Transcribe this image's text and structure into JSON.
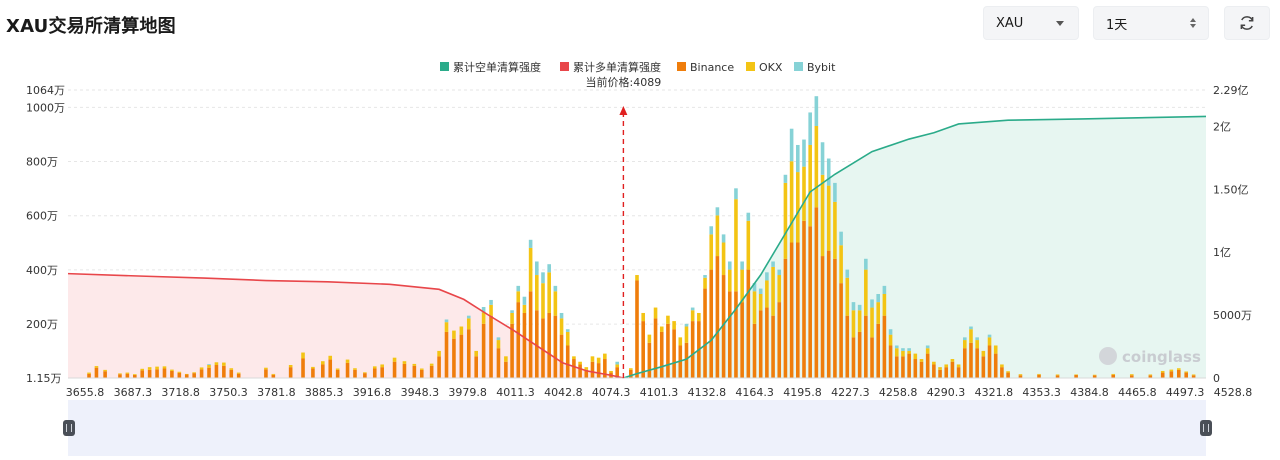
{
  "page": {
    "title": "XAU交易所清算地图",
    "symbol_select": "XAU",
    "period_select": "1天",
    "refresh_icon": "refresh-icon"
  },
  "chart_data": {
    "type": "bar",
    "annotation": "当前价格:4089",
    "current_price": 4089,
    "watermark": "coinglass",
    "legend": [
      "累计空单清算强度",
      "累计多单清算强度",
      "Binance",
      "OKX",
      "Bybit"
    ],
    "colors": {
      "short_line": "#2bab8a",
      "short_fill": "#e7f6f1",
      "long_line": "#e8464a",
      "long_fill": "#fde9ea",
      "binance": "#ef7d0b",
      "okx": "#f3c414",
      "bybit": "#86d2d6",
      "marker": "#e02020"
    },
    "xlim": [
      3640,
      4560
    ],
    "x_ticks": [
      "3655.8",
      "3687.3",
      "3718.8",
      "3750.3",
      "3781.8",
      "3885.3",
      "3916.8",
      "3948.3",
      "3979.8",
      "4011.3",
      "4042.8",
      "4074.3",
      "4101.3",
      "4132.8",
      "4164.3",
      "4195.8",
      "4227.3",
      "4258.8",
      "4290.3",
      "4321.8",
      "4353.3",
      "4384.8",
      "4465.8",
      "4497.3",
      "4528.8"
    ],
    "y_left_ticks": [
      "1.15万",
      "200万",
      "400万",
      "600万",
      "800万",
      "1000万",
      "1064万"
    ],
    "y_left_values": [
      11500,
      2000000,
      4000000,
      6000000,
      8000000,
      10000000,
      10640000
    ],
    "y_left_range": [
      11500,
      10640000
    ],
    "y_right_ticks": [
      "0",
      "5000万",
      "1亿",
      "1.50亿",
      "2亿",
      "2.29亿"
    ],
    "y_right_values": [
      0,
      50000000,
      100000000,
      150000000,
      200000000,
      229000000
    ],
    "y_right_range": [
      0,
      229000000
    ],
    "bars": [
      {
        "x": 3657,
        "b": 150000,
        "o": 50000,
        "y": 0
      },
      {
        "x": 3663,
        "b": 380000,
        "o": 60000,
        "y": 0
      },
      {
        "x": 3670,
        "b": 250000,
        "o": 50000,
        "y": 0
      },
      {
        "x": 3682,
        "b": 140000,
        "o": 30000,
        "y": 0
      },
      {
        "x": 3688,
        "b": 160000,
        "o": 40000,
        "y": 0
      },
      {
        "x": 3694,
        "b": 110000,
        "o": 30000,
        "y": 0
      },
      {
        "x": 3700,
        "b": 280000,
        "o": 60000,
        "y": 0
      },
      {
        "x": 3706,
        "b": 300000,
        "o": 100000,
        "y": 0
      },
      {
        "x": 3712,
        "b": 320000,
        "o": 100000,
        "y": 0
      },
      {
        "x": 3718,
        "b": 350000,
        "o": 80000,
        "y": 0
      },
      {
        "x": 3724,
        "b": 260000,
        "o": 50000,
        "y": 0
      },
      {
        "x": 3730,
        "b": 190000,
        "o": 40000,
        "y": 0
      },
      {
        "x": 3736,
        "b": 130000,
        "o": 20000,
        "y": 0
      },
      {
        "x": 3742,
        "b": 180000,
        "o": 30000,
        "y": 0
      },
      {
        "x": 3748,
        "b": 320000,
        "o": 70000,
        "y": 0
      },
      {
        "x": 3754,
        "b": 380000,
        "o": 100000,
        "y": 30000
      },
      {
        "x": 3760,
        "b": 480000,
        "o": 100000,
        "y": 0
      },
      {
        "x": 3766,
        "b": 450000,
        "o": 120000,
        "y": 0
      },
      {
        "x": 3772,
        "b": 300000,
        "o": 60000,
        "y": 0
      },
      {
        "x": 3778,
        "b": 160000,
        "o": 40000,
        "y": 0
      },
      {
        "x": 3800,
        "b": 320000,
        "o": 60000,
        "y": 0
      },
      {
        "x": 3806,
        "b": 120000,
        "o": 30000,
        "y": 0
      },
      {
        "x": 3820,
        "b": 400000,
        "o": 80000,
        "y": 0
      },
      {
        "x": 3830,
        "b": 720000,
        "o": 220000,
        "y": 0
      },
      {
        "x": 3838,
        "b": 350000,
        "o": 60000,
        "y": 0
      },
      {
        "x": 3846,
        "b": 500000,
        "o": 120000,
        "y": 0
      },
      {
        "x": 3852,
        "b": 680000,
        "o": 140000,
        "y": 0
      },
      {
        "x": 3858,
        "b": 300000,
        "o": 50000,
        "y": 0
      },
      {
        "x": 3866,
        "b": 560000,
        "o": 120000,
        "y": 0
      },
      {
        "x": 3872,
        "b": 300000,
        "o": 60000,
        "y": 0
      },
      {
        "x": 3880,
        "b": 180000,
        "o": 30000,
        "y": 0
      },
      {
        "x": 3888,
        "b": 350000,
        "o": 80000,
        "y": 0
      },
      {
        "x": 3894,
        "b": 400000,
        "o": 100000,
        "y": 0
      },
      {
        "x": 3904,
        "b": 600000,
        "o": 150000,
        "y": 0
      },
      {
        "x": 3912,
        "b": 520000,
        "o": 100000,
        "y": 0
      },
      {
        "x": 3920,
        "b": 450000,
        "o": 70000,
        "y": 0
      },
      {
        "x": 3926,
        "b": 300000,
        "o": 50000,
        "y": 0
      },
      {
        "x": 3934,
        "b": 450000,
        "o": 80000,
        "y": 0
      },
      {
        "x": 3940,
        "b": 800000,
        "o": 200000,
        "y": 0
      },
      {
        "x": 3946,
        "b": 1700000,
        "o": 360000,
        "y": 100000
      },
      {
        "x": 3952,
        "b": 1450000,
        "o": 300000,
        "y": 0
      },
      {
        "x": 3958,
        "b": 1600000,
        "o": 300000,
        "y": 0
      },
      {
        "x": 3964,
        "b": 1800000,
        "o": 400000,
        "y": 100000
      },
      {
        "x": 3970,
        "b": 800000,
        "o": 200000,
        "y": 0
      },
      {
        "x": 3976,
        "b": 2000000,
        "o": 420000,
        "y": 200000
      },
      {
        "x": 3982,
        "b": 2300000,
        "o": 400000,
        "y": 180000
      },
      {
        "x": 3988,
        "b": 1100000,
        "o": 300000,
        "y": 100000
      },
      {
        "x": 3994,
        "b": 600000,
        "o": 200000,
        "y": 0
      },
      {
        "x": 3999,
        "b": 2000000,
        "o": 400000,
        "y": 100000
      },
      {
        "x": 4004,
        "b": 2800000,
        "o": 400000,
        "y": 200000
      },
      {
        "x": 4009,
        "b": 2400000,
        "o": 300000,
        "y": 300000
      },
      {
        "x": 4014,
        "b": 3200000,
        "o": 1600000,
        "y": 300000
      },
      {
        "x": 4019,
        "b": 2500000,
        "o": 1300000,
        "y": 500000
      },
      {
        "x": 4024,
        "b": 2200000,
        "o": 1300000,
        "y": 400000
      },
      {
        "x": 4029,
        "b": 2400000,
        "o": 1500000,
        "y": 300000
      },
      {
        "x": 4034,
        "b": 2300000,
        "o": 900000,
        "y": 200000
      },
      {
        "x": 4039,
        "b": 1600000,
        "o": 600000,
        "y": 200000
      },
      {
        "x": 4044,
        "b": 1200000,
        "o": 500000,
        "y": 100000
      },
      {
        "x": 4049,
        "b": 700000,
        "o": 100000,
        "y": 0
      },
      {
        "x": 4054,
        "b": 500000,
        "o": 100000,
        "y": 0
      },
      {
        "x": 4059,
        "b": 300000,
        "o": 100000,
        "y": 0
      },
      {
        "x": 4064,
        "b": 600000,
        "o": 200000,
        "y": 0
      },
      {
        "x": 4069,
        "b": 550000,
        "o": 200000,
        "y": 0
      },
      {
        "x": 4074,
        "b": 700000,
        "o": 200000,
        "y": 0
      },
      {
        "x": 4079,
        "b": 200000,
        "o": 60000,
        "y": 0
      },
      {
        "x": 4084,
        "b": 400000,
        "o": 100000,
        "y": 100000
      },
      {
        "x": 4095,
        "b": 300000,
        "o": 60000,
        "y": 0
      },
      {
        "x": 4100,
        "b": 3600000,
        "o": 200000,
        "y": 0
      },
      {
        "x": 4105,
        "b": 2100000,
        "o": 300000,
        "y": 0
      },
      {
        "x": 4110,
        "b": 1300000,
        "o": 300000,
        "y": 0
      },
      {
        "x": 4115,
        "b": 2200000,
        "o": 400000,
        "y": 0
      },
      {
        "x": 4120,
        "b": 1700000,
        "o": 200000,
        "y": 0
      },
      {
        "x": 4125,
        "b": 2000000,
        "o": 300000,
        "y": 0
      },
      {
        "x": 4130,
        "b": 1800000,
        "o": 300000,
        "y": 0
      },
      {
        "x": 4135,
        "b": 1200000,
        "o": 300000,
        "y": 0
      },
      {
        "x": 4140,
        "b": 1300000,
        "o": 600000,
        "y": 100000
      },
      {
        "x": 4145,
        "b": 2100000,
        "o": 400000,
        "y": 100000
      },
      {
        "x": 4150,
        "b": 2100000,
        "o": 300000,
        "y": 0
      },
      {
        "x": 4155,
        "b": 3300000,
        "o": 400000,
        "y": 100000
      },
      {
        "x": 4160,
        "b": 4000000,
        "o": 1300000,
        "y": 300000
      },
      {
        "x": 4165,
        "b": 4500000,
        "o": 1500000,
        "y": 300000
      },
      {
        "x": 4170,
        "b": 3800000,
        "o": 1200000,
        "y": 300000
      },
      {
        "x": 4175,
        "b": 3200000,
        "o": 800000,
        "y": 300000
      },
      {
        "x": 4180,
        "b": 3200000,
        "o": 3400000,
        "y": 400000
      },
      {
        "x": 4185,
        "b": 2800000,
        "o": 1200000,
        "y": 300000
      },
      {
        "x": 4190,
        "b": 4000000,
        "o": 1800000,
        "y": 300000
      },
      {
        "x": 4195,
        "b": 2000000,
        "o": 1200000,
        "y": 300000
      },
      {
        "x": 4200,
        "b": 2500000,
        "o": 600000,
        "y": 200000
      },
      {
        "x": 4205,
        "b": 2600000,
        "o": 1000000,
        "y": 300000
      },
      {
        "x": 4210,
        "b": 2300000,
        "o": 1800000,
        "y": 200000
      },
      {
        "x": 4215,
        "b": 2800000,
        "o": 1000000,
        "y": 200000
      },
      {
        "x": 4220,
        "b": 4400000,
        "o": 2800000,
        "y": 300000
      },
      {
        "x": 4225,
        "b": 5000000,
        "o": 3000000,
        "y": 1200000
      },
      {
        "x": 4230,
        "b": 5000000,
        "o": 2600000,
        "y": 1000000
      },
      {
        "x": 4235,
        "b": 5800000,
        "o": 2000000,
        "y": 1000000
      },
      {
        "x": 4240,
        "b": 5600000,
        "o": 3000000,
        "y": 1200000
      },
      {
        "x": 4245,
        "b": 6300000,
        "o": 3000000,
        "y": 1100000
      },
      {
        "x": 4250,
        "b": 4500000,
        "o": 3000000,
        "y": 1200000
      },
      {
        "x": 4255,
        "b": 4700000,
        "o": 2400000,
        "y": 1000000
      },
      {
        "x": 4260,
        "b": 4400000,
        "o": 2100000,
        "y": 700000
      },
      {
        "x": 4265,
        "b": 3500000,
        "o": 1400000,
        "y": 500000
      },
      {
        "x": 4270,
        "b": 2300000,
        "o": 1400000,
        "y": 300000
      },
      {
        "x": 4275,
        "b": 1500000,
        "o": 1000000,
        "y": 300000
      },
      {
        "x": 4280,
        "b": 1700000,
        "o": 800000,
        "y": 200000
      },
      {
        "x": 4285,
        "b": 2300000,
        "o": 1700000,
        "y": 400000
      },
      {
        "x": 4290,
        "b": 1500000,
        "o": 1100000,
        "y": 300000
      },
      {
        "x": 4295,
        "b": 2000000,
        "o": 800000,
        "y": 300000
      },
      {
        "x": 4300,
        "b": 2300000,
        "o": 800000,
        "y": 300000
      },
      {
        "x": 4305,
        "b": 1200000,
        "o": 400000,
        "y": 200000
      },
      {
        "x": 4310,
        "b": 800000,
        "o": 300000,
        "y": 100000
      },
      {
        "x": 4315,
        "b": 800000,
        "o": 200000,
        "y": 100000
      },
      {
        "x": 4320,
        "b": 900000,
        "o": 100000,
        "y": 100000
      },
      {
        "x": 4325,
        "b": 700000,
        "o": 200000,
        "y": 0
      },
      {
        "x": 4330,
        "b": 600000,
        "o": 100000,
        "y": 0
      },
      {
        "x": 4335,
        "b": 900000,
        "o": 200000,
        "y": 100000
      },
      {
        "x": 4340,
        "b": 500000,
        "o": 100000,
        "y": 0
      },
      {
        "x": 4345,
        "b": 300000,
        "o": 100000,
        "y": 0
      },
      {
        "x": 4350,
        "b": 400000,
        "o": 100000,
        "y": 0
      },
      {
        "x": 4355,
        "b": 600000,
        "o": 100000,
        "y": 0
      },
      {
        "x": 4360,
        "b": 400000,
        "o": 100000,
        "y": 0
      },
      {
        "x": 4365,
        "b": 1100000,
        "o": 300000,
        "y": 100000
      },
      {
        "x": 4370,
        "b": 1300000,
        "o": 500000,
        "y": 100000
      },
      {
        "x": 4375,
        "b": 1100000,
        "o": 300000,
        "y": 100000
      },
      {
        "x": 4380,
        "b": 800000,
        "o": 200000,
        "y": 0
      },
      {
        "x": 4385,
        "b": 1200000,
        "o": 300000,
        "y": 100000
      },
      {
        "x": 4390,
        "b": 900000,
        "o": 300000,
        "y": 0
      },
      {
        "x": 4395,
        "b": 400000,
        "o": 100000,
        "y": 0
      },
      {
        "x": 4400,
        "b": 200000,
        "o": 50000,
        "y": 0
      },
      {
        "x": 4410,
        "b": 100000,
        "o": 40000,
        "y": 0
      },
      {
        "x": 4425,
        "b": 120000,
        "o": 30000,
        "y": 0
      },
      {
        "x": 4440,
        "b": 100000,
        "o": 30000,
        "y": 0
      },
      {
        "x": 4455,
        "b": 110000,
        "o": 20000,
        "y": 0
      },
      {
        "x": 4470,
        "b": 100000,
        "o": 20000,
        "y": 0
      },
      {
        "x": 4485,
        "b": 120000,
        "o": 30000,
        "y": 0
      },
      {
        "x": 4500,
        "b": 100000,
        "o": 40000,
        "y": 0
      },
      {
        "x": 4515,
        "b": 100000,
        "o": 30000,
        "y": 0
      },
      {
        "x": 4525,
        "b": 200000,
        "o": 60000,
        "y": 0
      },
      {
        "x": 4532,
        "b": 250000,
        "o": 60000,
        "y": 0
      },
      {
        "x": 4538,
        "b": 300000,
        "o": 60000,
        "y": 0
      },
      {
        "x": 4544,
        "b": 200000,
        "o": 40000,
        "y": 0
      },
      {
        "x": 4550,
        "b": 100000,
        "o": 30000,
        "y": 0
      }
    ],
    "long_cumulative": [
      [
        3640,
        83000000
      ],
      [
        3700,
        81000000
      ],
      [
        3750,
        79500000
      ],
      [
        3800,
        77500000
      ],
      [
        3850,
        76500000
      ],
      [
        3900,
        74500000
      ],
      [
        3940,
        70500000
      ],
      [
        3960,
        62500000
      ],
      [
        3980,
        50000000
      ],
      [
        4000,
        38000000
      ],
      [
        4020,
        25000000
      ],
      [
        4040,
        12000000
      ],
      [
        4060,
        5500000
      ],
      [
        4080,
        2000000
      ],
      [
        4089,
        0
      ]
    ],
    "short_cumulative": [
      [
        4089,
        0
      ],
      [
        4100,
        3500000
      ],
      [
        4120,
        9000000
      ],
      [
        4140,
        15000000
      ],
      [
        4160,
        30000000
      ],
      [
        4180,
        55000000
      ],
      [
        4200,
        82000000
      ],
      [
        4220,
        115000000
      ],
      [
        4240,
        148000000
      ],
      [
        4260,
        162000000
      ],
      [
        4290,
        180000000
      ],
      [
        4320,
        190000000
      ],
      [
        4340,
        195000000
      ],
      [
        4360,
        202000000
      ],
      [
        4400,
        205000000
      ],
      [
        4460,
        206000000
      ],
      [
        4560,
        208000000
      ]
    ]
  }
}
